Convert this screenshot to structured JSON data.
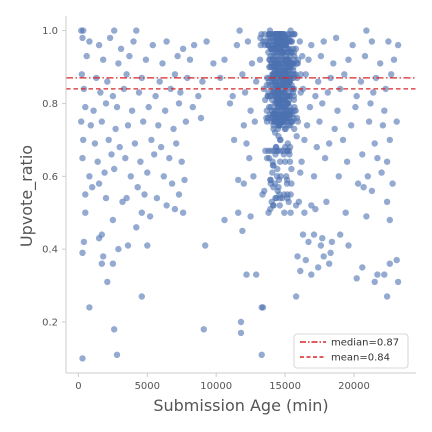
{
  "chart_data": {
    "type": "scatter",
    "xlabel": "Submission Age (min)",
    "ylabel": "Upvote_ratio",
    "xlim": [
      -900,
      24500
    ],
    "ylim": [
      0.06,
      1.04
    ],
    "xticks": [
      {
        "value": 0,
        "label": "0"
      },
      {
        "value": 5000,
        "label": "5000"
      },
      {
        "value": 10000,
        "label": "10000"
      },
      {
        "value": 15000,
        "label": "15000"
      },
      {
        "value": 20000,
        "label": "20000"
      }
    ],
    "yticks": [
      {
        "value": 0.2,
        "label": "0.2"
      },
      {
        "value": 0.4,
        "label": "0.4"
      },
      {
        "value": 0.6,
        "label": "0.6"
      },
      {
        "value": 0.8,
        "label": "0.8"
      },
      {
        "value": 1.0,
        "label": "1.0"
      }
    ],
    "grid": false,
    "legend_position": "bottom-right",
    "point_color": "#4c72b0",
    "reference_lines": [
      {
        "label": "median=0.87",
        "value": 0.87,
        "style": "dashdot",
        "color": "#d62728"
      },
      {
        "label": "mean=0.84",
        "value": 0.84,
        "style": "dashed",
        "color": "#d62728"
      }
    ],
    "series": [
      {
        "points": [
          [
            200,
            1.0
          ],
          [
            350,
            1.0
          ],
          [
            2600,
            1.0
          ],
          [
            4200,
            1.0
          ],
          [
            11700,
            1.0
          ],
          [
            13900,
            1.0
          ],
          [
            15400,
            1.0
          ],
          [
            20900,
            1.0
          ],
          [
            300,
            0.98
          ],
          [
            800,
            0.97
          ],
          [
            1500,
            0.96
          ],
          [
            2300,
            0.98
          ],
          [
            3100,
            0.95
          ],
          [
            4000,
            0.97
          ],
          [
            5400,
            0.96
          ],
          [
            6400,
            0.97
          ],
          [
            7600,
            0.95
          ],
          [
            8400,
            0.96
          ],
          [
            9300,
            0.97
          ],
          [
            11500,
            0.96
          ],
          [
            12300,
            0.97
          ],
          [
            13200,
            0.98
          ],
          [
            16900,
            0.96
          ],
          [
            17800,
            0.97
          ],
          [
            18700,
            0.98
          ],
          [
            19900,
            0.96
          ],
          [
            21300,
            0.97
          ],
          [
            22500,
            0.97
          ],
          [
            23200,
            0.96
          ],
          [
            600,
            0.93
          ],
          [
            1800,
            0.92
          ],
          [
            2900,
            0.91
          ],
          [
            3700,
            0.93
          ],
          [
            4900,
            0.92
          ],
          [
            6100,
            0.91
          ],
          [
            7200,
            0.93
          ],
          [
            8100,
            0.92
          ],
          [
            9800,
            0.91
          ],
          [
            10600,
            0.92
          ],
          [
            12600,
            0.91
          ],
          [
            16700,
            0.92
          ],
          [
            17600,
            0.93
          ],
          [
            18500,
            0.91
          ],
          [
            19600,
            0.92
          ],
          [
            20800,
            0.93
          ],
          [
            21900,
            0.91
          ],
          [
            22900,
            0.92
          ],
          [
            250,
            0.88
          ],
          [
            1300,
            0.87
          ],
          [
            2100,
            0.86
          ],
          [
            3500,
            0.88
          ],
          [
            4600,
            0.87
          ],
          [
            5900,
            0.86
          ],
          [
            7000,
            0.88
          ],
          [
            7900,
            0.87
          ],
          [
            9000,
            0.86
          ],
          [
            10300,
            0.87
          ],
          [
            11900,
            0.88
          ],
          [
            12900,
            0.86
          ],
          [
            16500,
            0.88
          ],
          [
            17400,
            0.86
          ],
          [
            18300,
            0.87
          ],
          [
            19300,
            0.88
          ],
          [
            20500,
            0.86
          ],
          [
            21600,
            0.87
          ],
          [
            22700,
            0.88
          ],
          [
            400,
            0.84
          ],
          [
            1600,
            0.83
          ],
          [
            2500,
            0.82
          ],
          [
            3300,
            0.84
          ],
          [
            4400,
            0.83
          ],
          [
            5600,
            0.82
          ],
          [
            6700,
            0.84
          ],
          [
            7400,
            0.83
          ],
          [
            8700,
            0.82
          ],
          [
            11200,
            0.82
          ],
          [
            12100,
            0.83
          ],
          [
            16300,
            0.84
          ],
          [
            17200,
            0.82
          ],
          [
            18100,
            0.83
          ],
          [
            19000,
            0.84
          ],
          [
            20200,
            0.82
          ],
          [
            21400,
            0.83
          ],
          [
            22300,
            0.84
          ],
          [
            500,
            0.79
          ],
          [
            1100,
            0.78
          ],
          [
            2000,
            0.8
          ],
          [
            2800,
            0.79
          ],
          [
            3900,
            0.78
          ],
          [
            5100,
            0.79
          ],
          [
            6300,
            0.78
          ],
          [
            7300,
            0.8
          ],
          [
            8300,
            0.79
          ],
          [
            11000,
            0.8
          ],
          [
            12500,
            0.78
          ],
          [
            16800,
            0.79
          ],
          [
            17700,
            0.8
          ],
          [
            18800,
            0.78
          ],
          [
            20100,
            0.79
          ],
          [
            21200,
            0.8
          ],
          [
            22200,
            0.78
          ],
          [
            200,
            0.75
          ],
          [
            900,
            0.74
          ],
          [
            1700,
            0.75
          ],
          [
            2700,
            0.73
          ],
          [
            3600,
            0.74
          ],
          [
            4700,
            0.75
          ],
          [
            5800,
            0.74
          ],
          [
            6900,
            0.73
          ],
          [
            7800,
            0.75
          ],
          [
            8900,
            0.76
          ],
          [
            12000,
            0.74
          ],
          [
            12800,
            0.75
          ],
          [
            16600,
            0.74
          ],
          [
            17500,
            0.75
          ],
          [
            18600,
            0.73
          ],
          [
            19800,
            0.74
          ],
          [
            21100,
            0.75
          ],
          [
            22100,
            0.74
          ],
          [
            23100,
            0.75
          ],
          [
            350,
            0.7
          ],
          [
            1200,
            0.69
          ],
          [
            2200,
            0.7
          ],
          [
            3000,
            0.68
          ],
          [
            4100,
            0.69
          ],
          [
            5300,
            0.7
          ],
          [
            6000,
            0.68
          ],
          [
            7100,
            0.69
          ],
          [
            11300,
            0.7
          ],
          [
            12200,
            0.69
          ],
          [
            16400,
            0.7
          ],
          [
            17300,
            0.68
          ],
          [
            18200,
            0.69
          ],
          [
            19200,
            0.7
          ],
          [
            21500,
            0.69
          ],
          [
            22600,
            0.7
          ],
          [
            300,
            0.65
          ],
          [
            1400,
            0.64
          ],
          [
            2400,
            0.66
          ],
          [
            3400,
            0.65
          ],
          [
            4500,
            0.64
          ],
          [
            5500,
            0.66
          ],
          [
            6600,
            0.65
          ],
          [
            7500,
            0.64
          ],
          [
            12400,
            0.65
          ],
          [
            16200,
            0.64
          ],
          [
            17900,
            0.65
          ],
          [
            19500,
            0.64
          ],
          [
            20600,
            0.66
          ],
          [
            21700,
            0.65
          ],
          [
            22400,
            0.64
          ],
          [
            800,
            0.6
          ],
          [
            1900,
            0.61
          ],
          [
            2600,
            0.62
          ],
          [
            3800,
            0.6
          ],
          [
            5000,
            0.61
          ],
          [
            6200,
            0.6
          ],
          [
            7700,
            0.59
          ],
          [
            11600,
            0.59
          ],
          [
            12700,
            0.6
          ],
          [
            16100,
            0.61
          ],
          [
            17100,
            0.6
          ],
          [
            18900,
            0.6
          ],
          [
            20300,
            0.58
          ],
          [
            21000,
            0.6
          ],
          [
            22000,
            0.61
          ],
          [
            22800,
            0.58
          ],
          [
            1000,
            0.57
          ],
          [
            1500,
            0.58
          ],
          [
            4300,
            0.57
          ],
          [
            6800,
            0.58
          ],
          [
            12000,
            0.58
          ],
          [
            20700,
            0.57
          ],
          [
            21300,
            0.56
          ],
          [
            500,
            0.55
          ],
          [
            2000,
            0.54
          ],
          [
            3200,
            0.53
          ],
          [
            3500,
            0.54
          ],
          [
            4800,
            0.55
          ],
          [
            5700,
            0.54
          ],
          [
            6400,
            0.52
          ],
          [
            7300,
            0.55
          ],
          [
            16000,
            0.53
          ],
          [
            16900,
            0.52
          ],
          [
            18000,
            0.53
          ],
          [
            22400,
            0.53
          ],
          [
            500,
            0.5
          ],
          [
            4600,
            0.5
          ],
          [
            5200,
            0.49
          ],
          [
            7000,
            0.51
          ],
          [
            7600,
            0.5
          ],
          [
            10600,
            0.48
          ],
          [
            11600,
            0.5
          ],
          [
            12500,
            0.49
          ],
          [
            16400,
            0.5
          ],
          [
            17200,
            0.51
          ],
          [
            19400,
            0.5
          ],
          [
            20900,
            0.49
          ],
          [
            22600,
            0.48
          ],
          [
            2500,
            0.48
          ],
          [
            4200,
            0.46
          ],
          [
            11900,
            0.45
          ],
          [
            16300,
            0.44
          ],
          [
            17100,
            0.44
          ],
          [
            17700,
            0.43
          ],
          [
            19000,
            0.44
          ],
          [
            400,
            0.42
          ],
          [
            1500,
            0.43
          ],
          [
            1700,
            0.44
          ],
          [
            3600,
            0.41
          ],
          [
            5000,
            0.41
          ],
          [
            9200,
            0.41
          ],
          [
            16700,
            0.42
          ],
          [
            17600,
            0.41
          ],
          [
            18400,
            0.42
          ],
          [
            19600,
            0.41
          ],
          [
            300,
            0.39
          ],
          [
            1800,
            0.38
          ],
          [
            2900,
            0.4
          ],
          [
            15900,
            0.38
          ],
          [
            16500,
            0.37
          ],
          [
            17800,
            0.38
          ],
          [
            18300,
            0.39
          ],
          [
            1700,
            0.36
          ],
          [
            2500,
            0.36
          ],
          [
            12200,
            0.33
          ],
          [
            12900,
            0.33
          ],
          [
            16100,
            0.34
          ],
          [
            16900,
            0.33
          ],
          [
            17400,
            0.35
          ],
          [
            18200,
            0.36
          ],
          [
            20600,
            0.35
          ],
          [
            21700,
            0.33
          ],
          [
            22600,
            0.36
          ],
          [
            23100,
            0.37
          ],
          [
            2100,
            0.31
          ],
          [
            20200,
            0.32
          ],
          [
            21500,
            0.31
          ],
          [
            22200,
            0.33
          ],
          [
            23200,
            0.31
          ],
          [
            4600,
            0.27
          ],
          [
            15800,
            0.27
          ],
          [
            22400,
            0.27
          ],
          [
            800,
            0.24
          ],
          [
            13400,
            0.24
          ],
          [
            13300,
            0.24
          ],
          [
            11800,
            0.2
          ],
          [
            2600,
            0.18
          ],
          [
            9100,
            0.18
          ],
          [
            11800,
            0.17
          ],
          [
            300,
            0.1
          ],
          [
            2800,
            0.11
          ],
          [
            13300,
            0.11
          ]
        ]
      }
    ],
    "dense_cluster": {
      "x_center": 14700,
      "x_spread": 2100,
      "y_min": 0.5,
      "y_max": 0.99,
      "y_mode": 0.86,
      "count": 560
    }
  }
}
